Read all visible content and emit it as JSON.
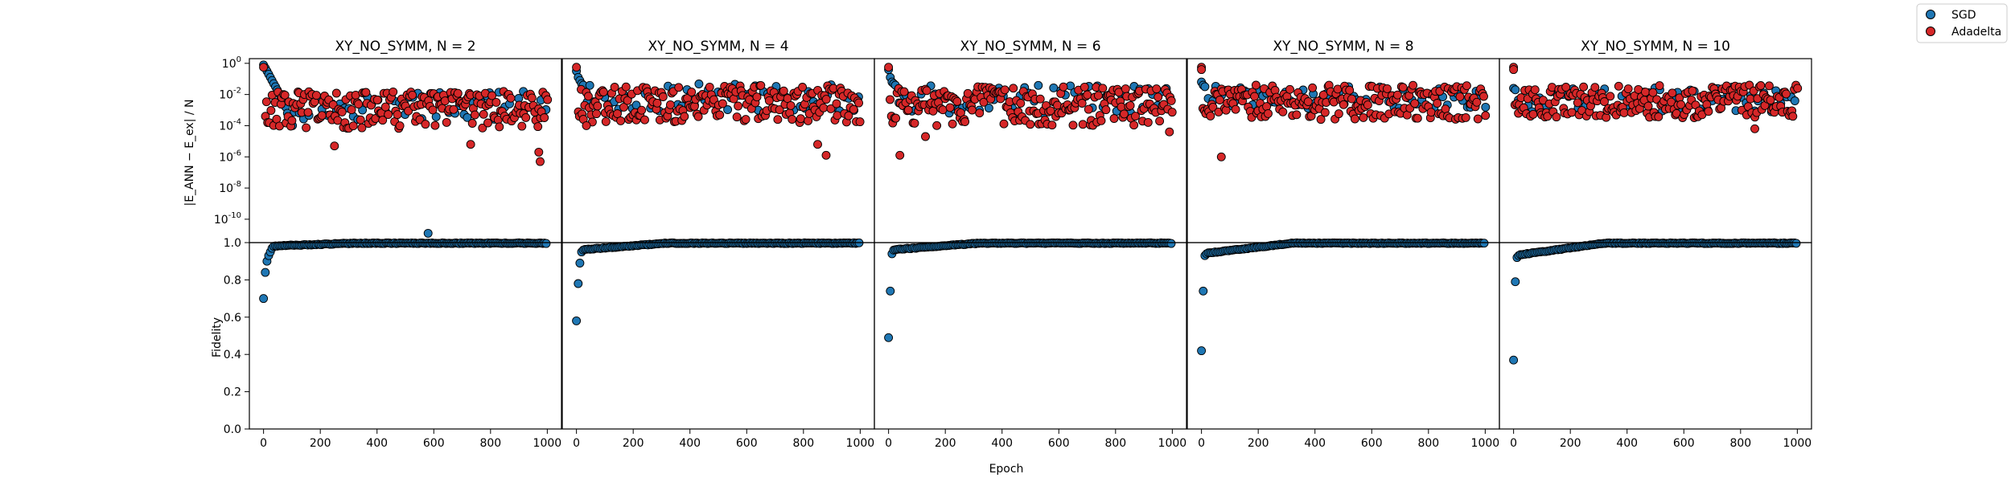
{
  "chart_data": {
    "type": "scatter",
    "x_label": "Epoch",
    "top_ylabel": "|E_ANN − E_ex| / N",
    "bottom_ylabel": "Fidelity",
    "x_ticks": [
      "0",
      "200",
      "400",
      "600",
      "800",
      "1000"
    ],
    "top_y_ticks": [
      "10^0",
      "10^-2",
      "10^-4",
      "10^-6",
      "10^-8",
      "10^-10"
    ],
    "bottom_y_ticks": [
      "0.0",
      "0.2",
      "0.4",
      "0.6",
      "0.8",
      "1.0"
    ],
    "xlim": [
      -50,
      1050
    ],
    "top_ylim_log10": [
      -11.5,
      0.3
    ],
    "bottom_ylim": [
      0.0,
      1.0
    ],
    "legend": [
      {
        "name": "SGD",
        "color": "#1f77b4"
      },
      {
        "name": "Adadelta",
        "color": "#d62728"
      }
    ],
    "panels": [
      {
        "title": "XY_NO_SYMM, N = 2",
        "energy_sgd_log10": [
          -0.1,
          -0.3,
          -0.5,
          -0.7,
          -0.9,
          -1.1,
          -1.3,
          -1.5,
          -1.7,
          -1.9,
          -2.1,
          -2.3,
          -2.5,
          -2.8,
          -3.2,
          -3.5,
          -3.8,
          -4.0
        ],
        "energy_sgd_tail_band": [
          -4.6,
          -1.8
        ],
        "energy_sgd_outlier": {
          "epoch": 580,
          "log10": -10.9
        },
        "energy_ada_band": [
          -4.2,
          -1.8
        ],
        "energy_ada_lows": [
          {
            "epoch": 250,
            "log10": -5.3
          },
          {
            "epoch": 730,
            "log10": -5.2
          },
          {
            "epoch": 970,
            "log10": -5.7
          },
          {
            "epoch": 975,
            "log10": -6.3
          }
        ],
        "fidelity_initial": [
          0.7,
          0.84,
          0.9,
          0.93,
          0.95,
          0.97,
          0.98
        ]
      },
      {
        "title": "XY_NO_SYMM, N = 4",
        "energy_sgd_log10": [
          -0.5,
          -0.9,
          -1.1,
          -1.3,
          -1.4
        ],
        "energy_sgd_tail_band": [
          -4.0,
          -1.3
        ],
        "energy_ada_band": [
          -3.8,
          -1.4
        ],
        "energy_ada_lows": [
          {
            "epoch": 850,
            "log10": -5.2
          },
          {
            "epoch": 880,
            "log10": -5.9
          },
          {
            "epoch": 35,
            "log10": -4.0
          }
        ],
        "fidelity_initial": [
          0.58,
          0.78,
          0.89,
          0.95,
          0.96
        ]
      },
      {
        "title": "XY_NO_SYMM, N = 6",
        "energy_sgd_log10": [
          -0.4,
          -0.9,
          -1.2,
          -1.3,
          -1.4
        ],
        "energy_sgd_tail_band": [
          -4.2,
          -1.4
        ],
        "energy_ada_band": [
          -4.0,
          -1.5
        ],
        "energy_ada_lows": [
          {
            "epoch": 40,
            "log10": -5.9
          },
          {
            "epoch": 130,
            "log10": -4.7
          },
          {
            "epoch": 990,
            "log10": -4.4
          }
        ],
        "fidelity_initial": [
          0.49,
          0.74,
          0.94,
          0.96
        ]
      },
      {
        "title": "XY_NO_SYMM, N = 8",
        "energy_sgd_log10": [
          -1.2,
          -1.4,
          -1.5
        ],
        "energy_sgd_tail_band": [
          -3.7,
          -1.4
        ],
        "energy_ada_band": [
          -3.6,
          -1.4
        ],
        "energy_ada_lows": [
          {
            "epoch": 70,
            "log10": -6.0
          },
          {
            "epoch": 0,
            "log10": -0.4
          }
        ],
        "fidelity_initial": [
          0.42,
          0.74,
          0.93,
          0.94
        ]
      },
      {
        "title": "XY_NO_SYMM, N = 10",
        "energy_sgd_log10": [
          -1.6,
          -1.7
        ],
        "energy_sgd_tail_band": [
          -4.0,
          -1.5
        ],
        "energy_ada_band": [
          -3.5,
          -1.4
        ],
        "energy_ada_lows": [
          {
            "epoch": 0,
            "log10": -0.4
          },
          {
            "epoch": 850,
            "log10": -4.2
          }
        ],
        "fidelity_initial": [
          0.37,
          0.79,
          0.92,
          0.93
        ]
      }
    ]
  }
}
